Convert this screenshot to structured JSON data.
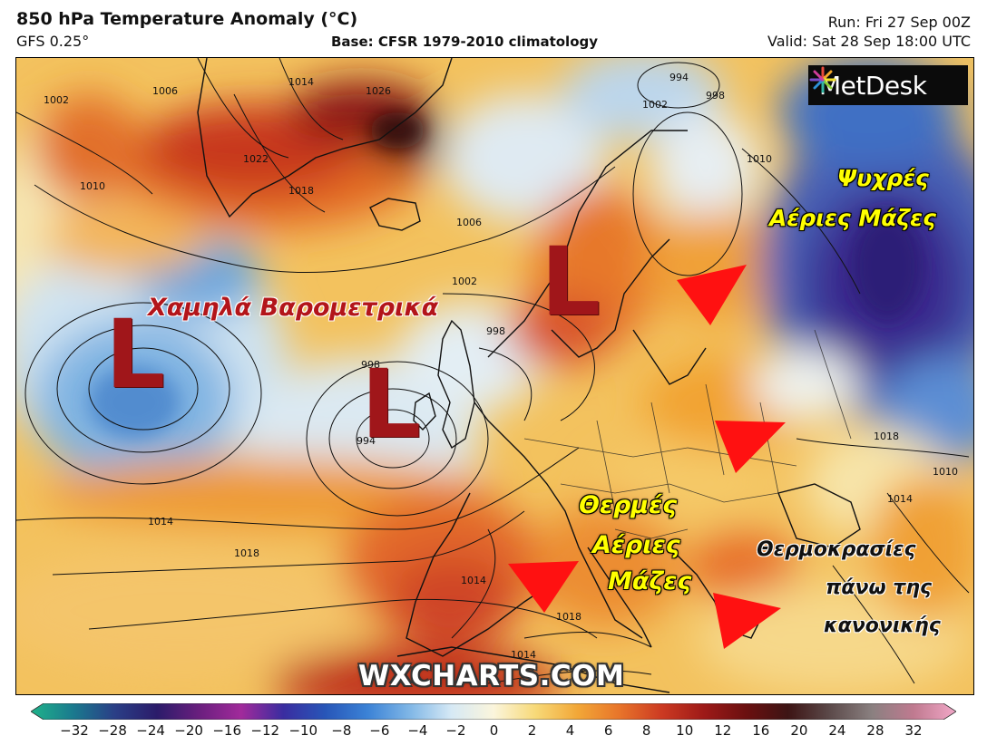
{
  "header": {
    "title": "850 hPa Temperature Anomaly (°C)",
    "model": "GFS 0.25°",
    "base": "Base: CFSR 1979-2010 climatology",
    "run": "Run: Fri 27 Sep 00Z",
    "valid": "Valid: Sat 28 Sep 18:00 UTC"
  },
  "logo": {
    "text": "MetDesk",
    "icon": "metdesk-star-icon"
  },
  "watermark": "WXCHARTS.COM",
  "annotations": {
    "low_pressure": "Χαμηλά Βαρομετρικά",
    "low_marker": "L",
    "cold_line1": "Ψυχρές",
    "cold_line2": "Αέριες Μάζες",
    "warm_line1": "Θερμές",
    "warm_line2": "Αέριες",
    "warm_line3": "Μάζες",
    "temps_line1": "Θερμοκρασίες",
    "temps_line2": "πάνω της",
    "temps_line3": "κανονικής"
  },
  "isobar_labels": [
    "1002",
    "1006",
    "1010",
    "1014",
    "1018",
    "1022",
    "1026",
    "994",
    "998",
    "1002",
    "1006",
    "1010",
    "1014",
    "1018",
    "1014",
    "1018",
    "1018",
    "1014",
    "1010",
    "1014",
    "994",
    "998",
    "1002",
    "998"
  ],
  "colorbar": {
    "ticks": [
      "−32",
      "−28",
      "−24",
      "−20",
      "−16",
      "−12",
      "−10",
      "−8",
      "−6",
      "−4",
      "−2",
      "0",
      "2",
      "4",
      "6",
      "8",
      "10",
      "12",
      "16",
      "20",
      "24",
      "28",
      "32"
    ],
    "colors": [
      "#1fb38a",
      "#1a7a8e",
      "#2a3e86",
      "#2b1c6a",
      "#6a1f7e",
      "#a12a9b",
      "#3a2da0",
      "#2856b8",
      "#3b82d6",
      "#7fb6e6",
      "#d6e9f5",
      "#fbf5dc",
      "#f7d978",
      "#f2a737",
      "#e8742a",
      "#cc3a22",
      "#9e1a18",
      "#6b1010",
      "#3d1414",
      "#5c4a4a",
      "#8a8080",
      "#c07a90",
      "#f2a8c8"
    ]
  }
}
